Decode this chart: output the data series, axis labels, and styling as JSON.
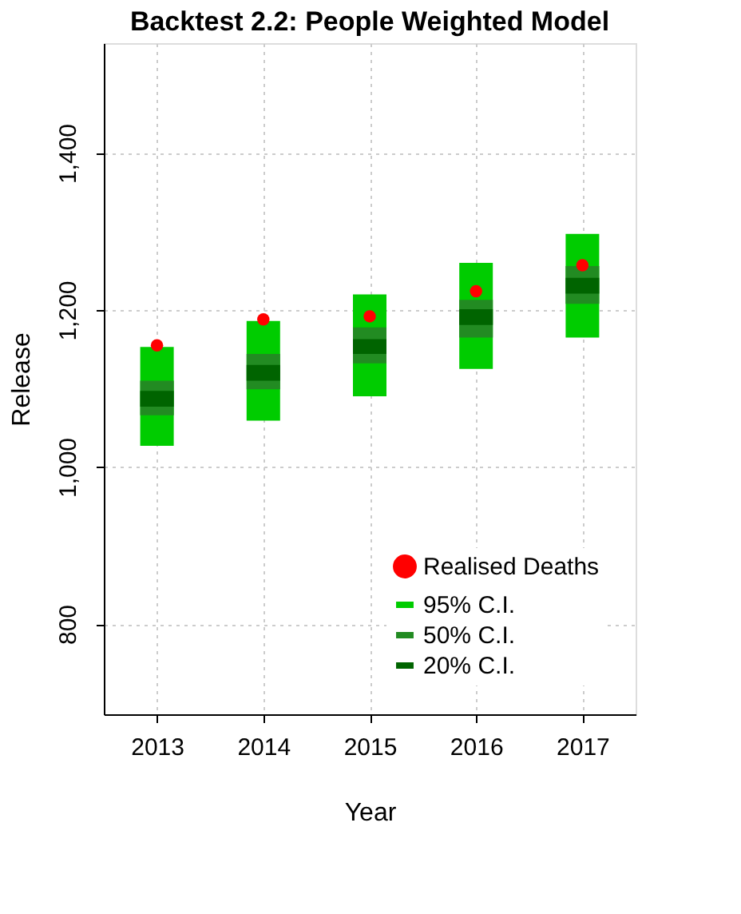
{
  "chart_data": {
    "type": "bar",
    "title": "Backtest 2.2: People Weighted Model",
    "xlabel": "Year",
    "ylabel": "Release",
    "categories": [
      "2013",
      "2014",
      "2015",
      "2016",
      "2017"
    ],
    "series": [
      {
        "name": "Realised Deaths",
        "type": "scatter",
        "color": "#ff0000",
        "marker": "circle",
        "values": [
          1155,
          1188,
          1192,
          1224,
          1257
        ]
      },
      {
        "name": "95% C.I.",
        "color": "#00cc00",
        "base": [
          1027,
          1059,
          1090,
          1125,
          1165
        ],
        "values": [
          126,
          127,
          130,
          135,
          132
        ]
      },
      {
        "name": "50% C.I.",
        "color": "#228b22",
        "base": [
          1066,
          1099,
          1132,
          1165,
          1208
        ],
        "values": [
          44,
          45,
          46,
          48,
          48
        ]
      },
      {
        "name": "20% C.I.",
        "color": "#006400",
        "base": [
          1077,
          1110,
          1144,
          1181,
          1221
        ],
        "values": [
          20,
          20,
          19,
          20,
          20
        ]
      }
    ],
    "ylim": [
      685,
      1540
    ],
    "yticks": [
      800,
      {
        "value": 1000,
        "label": "1,000"
      },
      {
        "value": 1200,
        "label": "1,200"
      },
      {
        "value": 1400,
        "label": "1,400"
      }
    ],
    "grid": true,
    "legend": "bottom right"
  }
}
